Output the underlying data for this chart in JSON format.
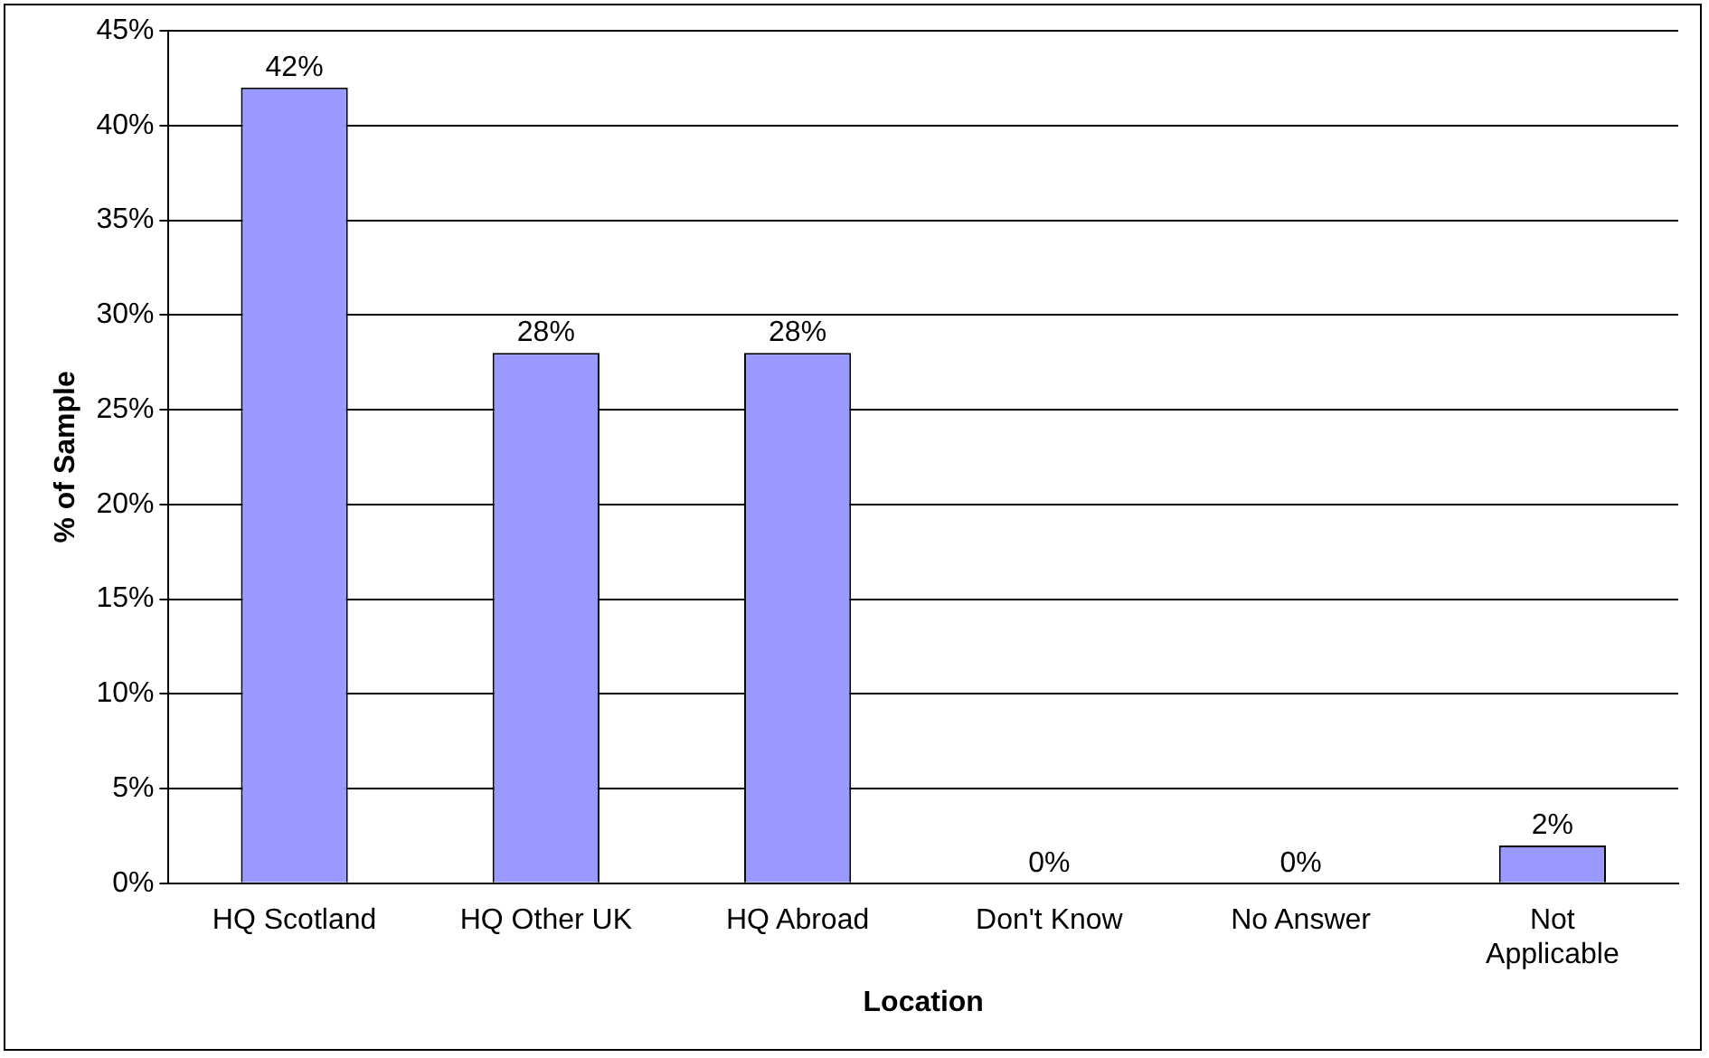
{
  "chart_data": {
    "type": "bar",
    "xlabel": "Location",
    "ylabel": "% of Sample",
    "categories": [
      "HQ Scotland",
      "HQ Other UK",
      "HQ Abroad",
      "Don't Know",
      "No Answer",
      "Not Applicable"
    ],
    "values": [
      42,
      28,
      28,
      0,
      0,
      2
    ],
    "value_labels": [
      "42%",
      "28%",
      "28%",
      "0%",
      "0%",
      "2%"
    ],
    "color": "#9999ff",
    "ylim": [
      0,
      45
    ],
    "yticks": [
      {
        "value": 0,
        "label": "0%"
      },
      {
        "value": 5,
        "label": "5%"
      },
      {
        "value": 10,
        "label": "10%"
      },
      {
        "value": 15,
        "label": "15%"
      },
      {
        "value": 20,
        "label": "20%"
      },
      {
        "value": 25,
        "label": "25%"
      },
      {
        "value": 30,
        "label": "30%"
      },
      {
        "value": 35,
        "label": "35%"
      },
      {
        "value": 40,
        "label": "40%"
      },
      {
        "value": 45,
        "label": "45%"
      }
    ],
    "grid": "y",
    "legend": false
  }
}
